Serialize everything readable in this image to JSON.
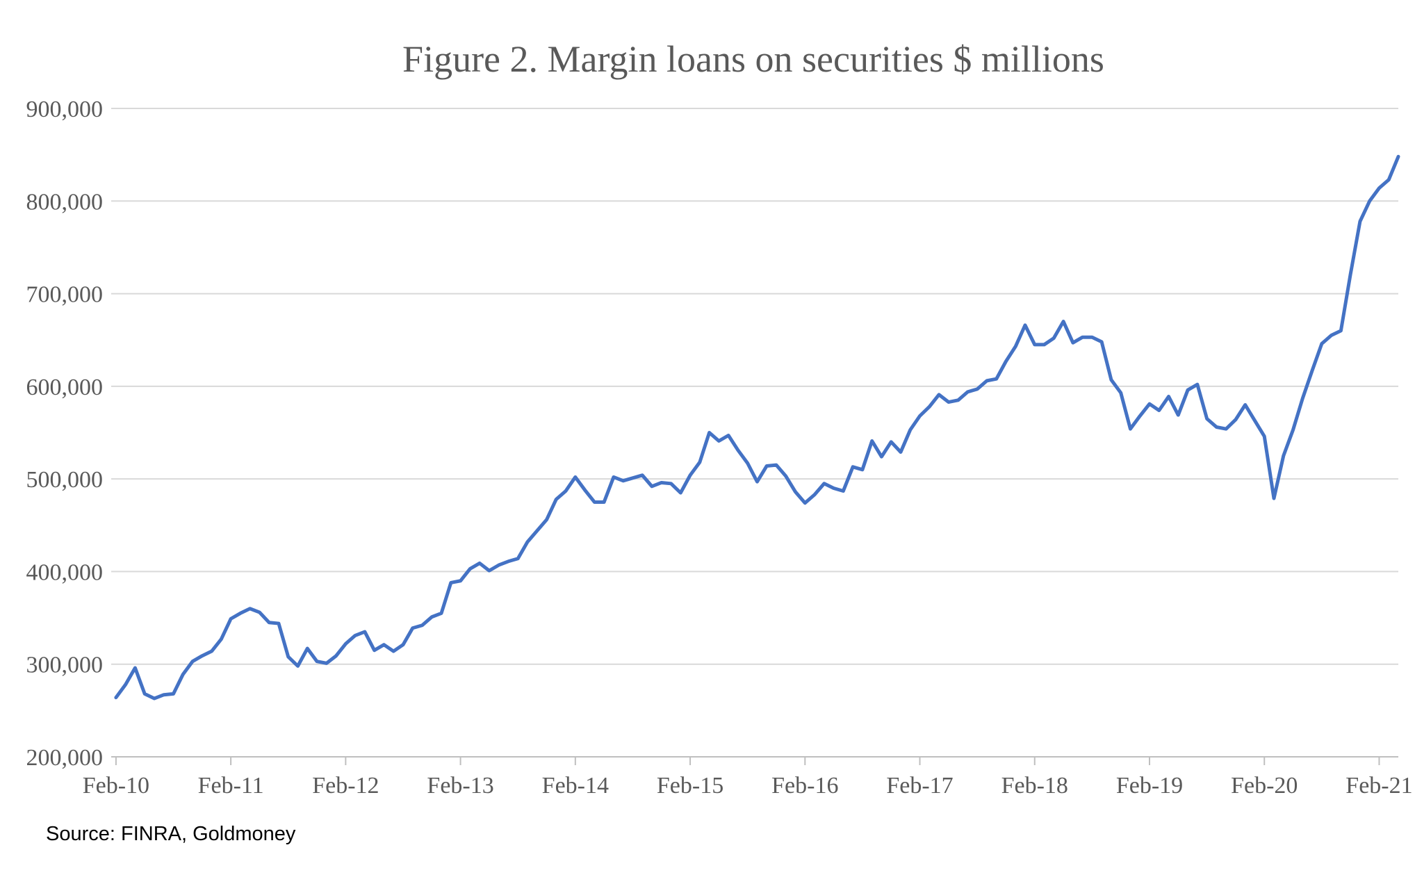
{
  "chart_data": {
    "type": "line",
    "title": "Figure 2. Margin loans on securities $ millions",
    "xlabel": "",
    "ylabel": "",
    "ylim": [
      200000,
      900000
    ],
    "y_ticks": [
      200000,
      300000,
      400000,
      500000,
      600000,
      700000,
      800000,
      900000
    ],
    "y_tick_labels": [
      "200,000",
      "300,000",
      "400,000",
      "500,000",
      "600,000",
      "700,000",
      "800,000",
      "900,000"
    ],
    "x_tick_labels": [
      "Feb-10",
      "Feb-11",
      "Feb-12",
      "Feb-13",
      "Feb-14",
      "Feb-15",
      "Feb-16",
      "Feb-17",
      "Feb-18",
      "Feb-19",
      "Feb-20",
      "Feb-21"
    ],
    "grid": true,
    "legend": "none",
    "series": [
      {
        "color": "#4472C4",
        "x_start": "Feb-10",
        "frequency": "monthly",
        "values": [
          264000,
          278000,
          296000,
          268000,
          263000,
          267000,
          268000,
          289000,
          303000,
          309000,
          314000,
          327000,
          349000,
          355000,
          360000,
          356000,
          345000,
          344000,
          308000,
          298000,
          317000,
          303000,
          301000,
          309000,
          322000,
          331000,
          335000,
          315000,
          321000,
          314000,
          321000,
          339000,
          342000,
          351000,
          355000,
          388000,
          390000,
          403000,
          409000,
          401000,
          407000,
          411000,
          414000,
          432000,
          444000,
          456000,
          478000,
          487000,
          502000,
          488000,
          475000,
          475000,
          502000,
          498000,
          501000,
          504000,
          492000,
          496000,
          495000,
          485000,
          504000,
          518000,
          550000,
          541000,
          547000,
          531000,
          517000,
          497000,
          514000,
          515000,
          503000,
          486000,
          474000,
          483000,
          495000,
          490000,
          487000,
          513000,
          510000,
          541000,
          524000,
          540000,
          529000,
          553000,
          568000,
          578000,
          591000,
          583000,
          585000,
          594000,
          597000,
          606000,
          608000,
          627000,
          643000,
          666000,
          645000,
          645000,
          652000,
          670000,
          647000,
          653000,
          653000,
          648000,
          607000,
          593000,
          554000,
          568000,
          581000,
          574000,
          589000,
          569000,
          596000,
          602000,
          565000,
          556000,
          554000,
          564000,
          580000,
          563000,
          546000,
          479000,
          525000,
          553000,
          587000,
          617000,
          646000,
          655000,
          660000,
          721000,
          778000,
          800000,
          814000,
          823000,
          848000
        ]
      }
    ]
  },
  "source": "Source: FINRA, Goldmoney"
}
